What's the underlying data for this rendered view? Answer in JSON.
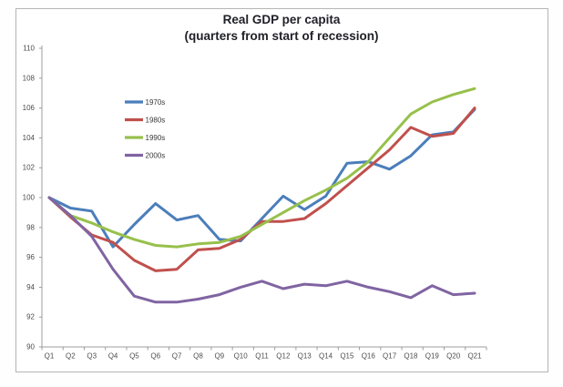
{
  "chart_data": {
    "type": "line",
    "title": "Real GDP per capita",
    "subtitle": "(quarters from start of recession)",
    "x_categories": [
      "Q1",
      "Q2",
      "Q3",
      "Q4",
      "Q5",
      "Q6",
      "Q7",
      "Q8",
      "Q9",
      "Q10",
      "Q11",
      "Q12",
      "Q13",
      "Q14",
      "Q15",
      "Q16",
      "Q17",
      "Q18",
      "Q19",
      "Q20",
      "Q21"
    ],
    "y_axis": {
      "min": 90,
      "max": 110,
      "step": 2,
      "ticks": [
        90,
        92,
        94,
        96,
        98,
        100,
        102,
        104,
        106,
        108,
        110
      ]
    },
    "grid": false,
    "legend_position": "inside-upper-left",
    "series": [
      {
        "name": "1970s",
        "color": "#4b7ebb",
        "values": [
          100,
          99.3,
          99.1,
          96.7,
          98.2,
          99.6,
          98.5,
          98.8,
          97.2,
          97.1,
          98.6,
          100.1,
          99.2,
          100.1,
          102.3,
          102.4,
          101.9,
          102.8,
          104.2,
          104.4,
          105.9
        ]
      },
      {
        "name": "1980s",
        "color": "#c0504d",
        "values": [
          100,
          98.7,
          97.5,
          97.0,
          95.8,
          95.1,
          95.2,
          96.5,
          96.6,
          97.2,
          98.4,
          98.4,
          98.6,
          99.6,
          100.8,
          102.0,
          103.2,
          104.7,
          104.1,
          104.3,
          106.0
        ]
      },
      {
        "name": "1990s",
        "color": "#97c04b",
        "values": [
          100,
          98.8,
          98.3,
          97.7,
          97.2,
          96.8,
          96.7,
          96.9,
          97.0,
          97.4,
          98.2,
          99.0,
          99.8,
          100.5,
          101.3,
          102.4,
          104.0,
          105.6,
          106.4,
          106.9,
          107.3
        ]
      },
      {
        "name": "2000s",
        "color": "#8064a2",
        "values": [
          100,
          98.8,
          97.4,
          95.2,
          93.4,
          93.0,
          93.0,
          93.2,
          93.5,
          94.0,
          94.4,
          93.9,
          94.2,
          94.1,
          94.4,
          94.0,
          93.7,
          93.3,
          94.1,
          93.5,
          93.6
        ]
      }
    ]
  }
}
